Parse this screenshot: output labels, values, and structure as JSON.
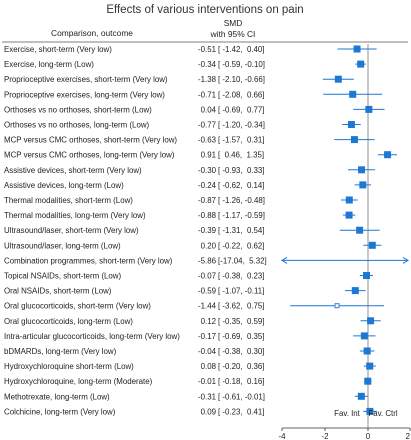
{
  "chart_data": {
    "type": "forest",
    "title": "Effects of various interventions on pain",
    "column_header_left": "Comparison, outcome",
    "column_header_right": [
      "SMD",
      "with 95% CI"
    ],
    "favours_left": "Fav. Int",
    "favours_right": "Fav. Ctrl",
    "xlim": [
      -4,
      2
    ],
    "xticks": [
      "-4",
      "-2",
      "0",
      "2"
    ],
    "accent_color": "#1f77d4",
    "rows": [
      {
        "label": "Exercise, short-term (Very low)",
        "smd": -0.51,
        "lo": -1.42,
        "hi": 0.4,
        "smd_text": "-0.51",
        "ci_text": "[ -1.42,  0.40]",
        "marker": "square"
      },
      {
        "label": "Exercise, long-term (Low)",
        "smd": -0.34,
        "lo": -0.59,
        "hi": -0.1,
        "smd_text": "-0.34",
        "ci_text": "[ -0.59, -0.10]",
        "marker": "square"
      },
      {
        "label": "Proprioceptive exercises, short-term (Very low)",
        "smd": -1.38,
        "lo": -2.1,
        "hi": -0.66,
        "smd_text": "-1.38",
        "ci_text": "[ -2.10, -0.66]",
        "marker": "square"
      },
      {
        "label": "Proprioceptive exercises, long-term (Very low)",
        "smd": -0.71,
        "lo": -2.08,
        "hi": 0.66,
        "smd_text": "-0.71",
        "ci_text": "[ -2.08,  0.66]",
        "marker": "square"
      },
      {
        "label": "Orthoses vs no orthoses, short-term (Low)",
        "smd": 0.04,
        "lo": -0.69,
        "hi": 0.77,
        "smd_text": "0.04",
        "ci_text": "[ -0.69,  0.77]",
        "marker": "square"
      },
      {
        "label": "Orthoses vs no orthoses, long-term (Low)",
        "smd": -0.77,
        "lo": -1.2,
        "hi": -0.34,
        "smd_text": "-0.77",
        "ci_text": "[ -1.20, -0.34]",
        "marker": "square"
      },
      {
        "label": "MCP versus CMC orthoses, short-term (Very low)",
        "smd": -0.63,
        "lo": -1.57,
        "hi": 0.31,
        "smd_text": "-0.63",
        "ci_text": "[ -1.57,  0.31]",
        "marker": "square"
      },
      {
        "label": "MCP versus CMC orthoses, long-term (Very low)",
        "smd": 0.91,
        "lo": 0.46,
        "hi": 1.35,
        "smd_text": "0.91",
        "ci_text": "[  0.46,  1.35]",
        "marker": "square"
      },
      {
        "label": "Assistive devices, short-term (Very low)",
        "smd": -0.3,
        "lo": -0.93,
        "hi": 0.33,
        "smd_text": "-0.30",
        "ci_text": "[ -0.93,  0.33]",
        "marker": "square"
      },
      {
        "label": "Assistive devices, long-term (Low)",
        "smd": -0.24,
        "lo": -0.62,
        "hi": 0.14,
        "smd_text": "-0.24",
        "ci_text": "[ -0.62,  0.14]",
        "marker": "square"
      },
      {
        "label": "Thermal modalities, short-term (Low)",
        "smd": -0.87,
        "lo": -1.26,
        "hi": -0.48,
        "smd_text": "-0.87",
        "ci_text": "[ -1.26, -0.48]",
        "marker": "square"
      },
      {
        "label": "Thermal modalities, long-term (Very low)",
        "smd": -0.88,
        "lo": -1.17,
        "hi": -0.59,
        "smd_text": "-0.88",
        "ci_text": "[ -1.17, -0.59]",
        "marker": "square"
      },
      {
        "label": "Ultrasound/laser, short-term (Very low)",
        "smd": -0.39,
        "lo": -1.31,
        "hi": 0.54,
        "smd_text": "-0.39",
        "ci_text": "[ -1.31,  0.54]",
        "marker": "square"
      },
      {
        "label": "Ultrasound/laser, long-term (Low)",
        "smd": 0.2,
        "lo": -0.22,
        "hi": 0.62,
        "smd_text": "0.20",
        "ci_text": "[ -0.22,  0.62]",
        "marker": "square"
      },
      {
        "label": "Combination programmes, short-term (Very low)",
        "smd": -5.86,
        "lo": -17.04,
        "hi": 5.32,
        "smd_text": "-5.86",
        "ci_text": "[-17.04,  5.32]",
        "marker": "arrow"
      },
      {
        "label": "Topical NSAIDs, short-term (Low)",
        "smd": -0.07,
        "lo": -0.38,
        "hi": 0.23,
        "smd_text": "-0.07",
        "ci_text": "[ -0.38,  0.23]",
        "marker": "square"
      },
      {
        "label": "Oral NSAIDs, short-term (Low)",
        "smd": -0.59,
        "lo": -1.07,
        "hi": -0.11,
        "smd_text": "-0.59",
        "ci_text": "[ -1.07, -0.11]",
        "marker": "square"
      },
      {
        "label": "Oral glucocorticoids, short-term (Very low)",
        "smd": -1.44,
        "lo": -3.62,
        "hi": 0.75,
        "smd_text": "-1.44",
        "ci_text": "[ -3.62,  0.75]",
        "marker": "open"
      },
      {
        "label": "Oral glucocorticoids, long-term (Low)",
        "smd": 0.12,
        "lo": -0.35,
        "hi": 0.59,
        "smd_text": "0.12",
        "ci_text": "[ -0.35,  0.59]",
        "marker": "square"
      },
      {
        "label": "Intra-articular glucocorticoids, long-term (Very low)",
        "smd": -0.17,
        "lo": -0.69,
        "hi": 0.35,
        "smd_text": "-0.17",
        "ci_text": "[ -0.69,  0.35]",
        "marker": "square"
      },
      {
        "label": "bDMARDs, long-term (Very low)",
        "smd": -0.04,
        "lo": -0.38,
        "hi": 0.3,
        "smd_text": "-0.04",
        "ci_text": "[ -0.38,  0.30]",
        "marker": "square"
      },
      {
        "label": "Hydroxychloroquine short-term (Low)",
        "smd": 0.08,
        "lo": -0.2,
        "hi": 0.36,
        "smd_text": "0.08",
        "ci_text": "[ -0.20,  0.36]",
        "marker": "square"
      },
      {
        "label": "Hydroxychloroquine, long-term (Moderate)",
        "smd": -0.01,
        "lo": -0.18,
        "hi": 0.16,
        "smd_text": "-0.01",
        "ci_text": "[ -0.18,  0.16]",
        "marker": "square"
      },
      {
        "label": "Methotrexate, long-term (Low)",
        "smd": -0.31,
        "lo": -0.61,
        "hi": -0.01,
        "smd_text": "-0.31",
        "ci_text": "[ -0.61, -0.01]",
        "marker": "square"
      },
      {
        "label": "Colchicine, long-term (Very low)",
        "smd": 0.09,
        "lo": -0.23,
        "hi": 0.41,
        "smd_text": "0.09",
        "ci_text": "[ -0.23,  0.41]",
        "marker": "square"
      }
    ]
  }
}
